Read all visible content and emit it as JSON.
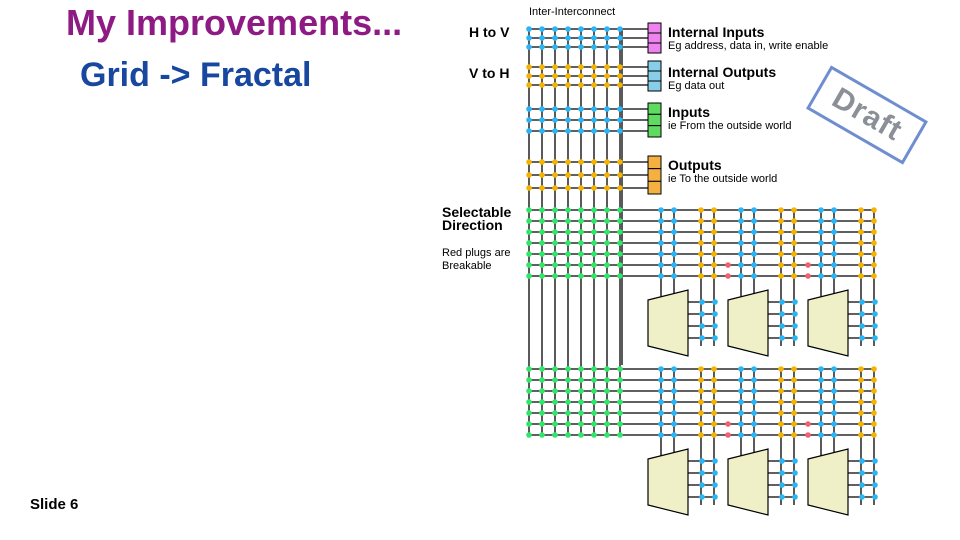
{
  "slide": {
    "title": "My Improvements...",
    "subtitle": "Grid -> Fractal",
    "number_label": "Slide 6"
  },
  "diagram": {
    "inter_label": "Inter-Interconnect",
    "h_to_v": "H to V",
    "v_to_h": "V to H",
    "selectable_line1": "Selectable",
    "selectable_line2": "Direction",
    "red_plugs_line1": "Red plugs are",
    "red_plugs_line2": "Breakable",
    "legend": [
      {
        "title": "Internal Inputs",
        "desc": "Eg address, data in, write enable",
        "color": "#ee82ee"
      },
      {
        "title": "Internal Outputs",
        "desc": "Eg data out",
        "color": "#87ceeb"
      },
      {
        "title": "Inputs",
        "desc": "ie From the outside world",
        "color": "#5fdc5f"
      },
      {
        "title": "Outputs",
        "desc": "ie To the outside world",
        "color": "#f5b042"
      }
    ],
    "colors": {
      "blue": "#29b6f6",
      "orange": "#f5b400",
      "green": "#2ee86a",
      "red": "#f06070",
      "block_fill": "#efefc8",
      "draft_border": "#6f8ed0"
    }
  },
  "stamp": {
    "text": "Draft"
  }
}
